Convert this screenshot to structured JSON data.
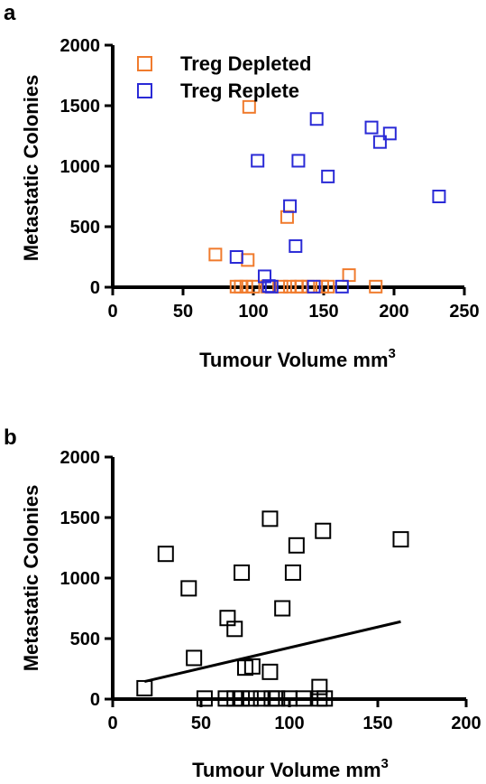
{
  "chart_data": [
    {
      "panel": "a",
      "type": "scatter",
      "xlabel": "Tumour Volume mm",
      "xlabel_sup": "3",
      "ylabel": "Metastatic Colonies",
      "xlim": [
        0,
        250
      ],
      "ylim": [
        0,
        2000
      ],
      "xticks": [
        "0",
        "50",
        "100",
        "150",
        "200",
        "250"
      ],
      "yticks": [
        "0",
        "500",
        "1000",
        "1500",
        "2000"
      ],
      "legend_position": "top-left",
      "series": [
        {
          "name": "Treg Depleted",
          "color": "#f07b2d",
          "points": [
            [
              97,
              1490
            ],
            [
              124,
              580
            ],
            [
              73,
              270
            ],
            [
              96,
              225
            ],
            [
              168,
              100
            ],
            [
              187,
              5
            ],
            [
              88,
              5
            ],
            [
              91,
              5
            ],
            [
              95,
              5
            ],
            [
              100,
              5
            ],
            [
              110,
              5
            ],
            [
              120,
              5
            ],
            [
              126,
              5
            ],
            [
              131,
              5
            ],
            [
              134,
              5
            ],
            [
              139,
              5
            ],
            [
              149,
              5
            ],
            [
              153,
              5
            ]
          ]
        },
        {
          "name": "Treg Replete",
          "color": "#2a2ad6",
          "points": [
            [
              145,
              1390
            ],
            [
              184,
              1320
            ],
            [
              197,
              1270
            ],
            [
              190,
              1200
            ],
            [
              103,
              1045
            ],
            [
              132,
              1045
            ],
            [
              153,
              915
            ],
            [
              232,
              750
            ],
            [
              126,
              670
            ],
            [
              130,
              340
            ],
            [
              88,
              250
            ],
            [
              108,
              90
            ],
            [
              111,
              10
            ],
            [
              113,
              5
            ],
            [
              143,
              5
            ],
            [
              163,
              5
            ]
          ]
        }
      ]
    },
    {
      "panel": "b",
      "type": "scatter",
      "xlabel": "Tumour Volume mm",
      "xlabel_sup": "3",
      "ylabel": "Metastatic Colonies",
      "xlim": [
        0,
        200
      ],
      "ylim": [
        0,
        2000
      ],
      "xticks": [
        "0",
        "50",
        "100",
        "150",
        "200"
      ],
      "yticks": [
        "0",
        "500",
        "1000",
        "1500",
        "2000"
      ],
      "series": [
        {
          "color": "#000000",
          "points": [
            [
              89,
              1490
            ],
            [
              119,
              1390
            ],
            [
              163,
              1320
            ],
            [
              104,
              1270
            ],
            [
              30,
              1200
            ],
            [
              73,
              1045
            ],
            [
              102,
              1045
            ],
            [
              43,
              915
            ],
            [
              96,
              750
            ],
            [
              65,
              670
            ],
            [
              69,
              580
            ],
            [
              46,
              340
            ],
            [
              79,
              270
            ],
            [
              75,
              260
            ],
            [
              89,
              225
            ],
            [
              18,
              90
            ],
            [
              117,
              100
            ],
            [
              52,
              5
            ],
            [
              64,
              5
            ],
            [
              69,
              5
            ],
            [
              73,
              5
            ],
            [
              78,
              5
            ],
            [
              84,
              5
            ],
            [
              90,
              5
            ],
            [
              93,
              5
            ],
            [
              100,
              5
            ],
            [
              108,
              5
            ],
            [
              117,
              5
            ],
            [
              120,
              5
            ]
          ]
        }
      ],
      "trendline": {
        "x": [
          18,
          163
        ],
        "y": [
          145,
          640
        ]
      }
    }
  ]
}
